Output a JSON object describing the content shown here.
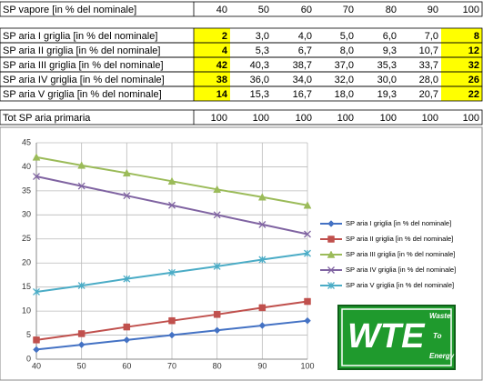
{
  "table": {
    "header": {
      "label": "SP vapore [in % del nominale]",
      "cells": [
        "40",
        "50",
        "60",
        "70",
        "80",
        "90",
        "100"
      ]
    },
    "rows": [
      {
        "label": "SP aria I griglia [in % del nominale]",
        "cells": [
          "2",
          "3,0",
          "4,0",
          "5,0",
          "6,0",
          "7,0",
          "8"
        ]
      },
      {
        "label": "SP aria II griglia [in % del nominale]",
        "cells": [
          "4",
          "5,3",
          "6,7",
          "8,0",
          "9,3",
          "10,7",
          "12"
        ]
      },
      {
        "label": "SP aria III griglia [in % del nominale]",
        "cells": [
          "42",
          "40,3",
          "38,7",
          "37,0",
          "35,3",
          "33,7",
          "32"
        ]
      },
      {
        "label": "SP aria IV griglia [in % del nominale]",
        "cells": [
          "38",
          "36,0",
          "34,0",
          "32,0",
          "30,0",
          "28,0",
          "26"
        ]
      },
      {
        "label": "SP aria V griglia [in % del nominale]",
        "cells": [
          "14",
          "15,3",
          "16,7",
          "18,0",
          "19,3",
          "20,7",
          "22"
        ]
      }
    ],
    "total": {
      "label": "Tot SP aria primaria",
      "cells": [
        "100",
        "100",
        "100",
        "100",
        "100",
        "100",
        "100"
      ]
    },
    "highlight": "#ffff00"
  },
  "chart_data": {
    "type": "line",
    "x": [
      40,
      50,
      60,
      70,
      80,
      90,
      100
    ],
    "xlim": [
      40,
      100
    ],
    "xticks": [
      40,
      50,
      60,
      70,
      80,
      90,
      100
    ],
    "ylim": [
      0,
      45
    ],
    "yticks": [
      0,
      5,
      10,
      15,
      20,
      25,
      30,
      35,
      40,
      45
    ],
    "grid": true,
    "legend": "right",
    "series": [
      {
        "name": "SP aria I griglia [in % del nominale]",
        "color": "#4472c4",
        "marker": "diamond",
        "values": [
          2,
          3,
          4,
          5,
          6,
          7,
          8
        ]
      },
      {
        "name": "SP aria II griglia [in % del nominale]",
        "color": "#c0504d",
        "marker": "square",
        "values": [
          4,
          5.3,
          6.7,
          8,
          9.3,
          10.7,
          12
        ]
      },
      {
        "name": "SP aria III griglia [in % del nominale]",
        "color": "#9bbb59",
        "marker": "triangle",
        "values": [
          42,
          40.3,
          38.7,
          37,
          35.3,
          33.7,
          32
        ]
      },
      {
        "name": "SP aria IV griglia [in % del nominale]",
        "color": "#8064a2",
        "marker": "x",
        "values": [
          38,
          36,
          34,
          32,
          30,
          28,
          26
        ]
      },
      {
        "name": "SP aria V griglia [in % del nominale]",
        "color": "#4bacc6",
        "marker": "star",
        "values": [
          14,
          15.3,
          16.7,
          18,
          19.3,
          20.7,
          22
        ]
      }
    ]
  },
  "logo": {
    "mark": "WTE",
    "line1": "Waste",
    "line2": "To",
    "line3": "Energy"
  }
}
